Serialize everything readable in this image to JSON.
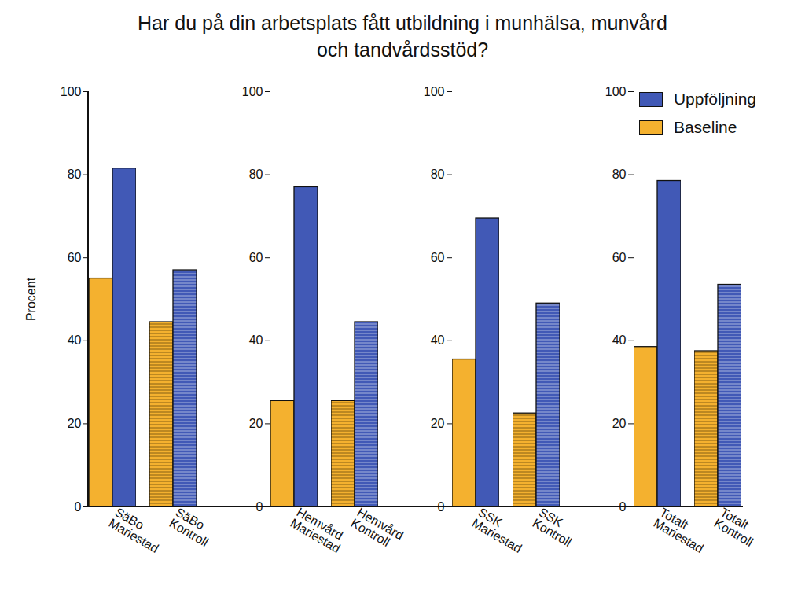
{
  "chart_data": {
    "type": "bar",
    "title": "Har du på din arbetsplats fått utbildning i munhälsa, munvård och tandvårdsstöd?",
    "ylabel": "Procent",
    "categories": [
      "SäBo Mariestad",
      "SäBo Kontroll",
      "Hemvård Mariestad",
      "Hemvård Kontroll",
      "SSK Mariestad",
      "SSK Kontroll",
      "Totalt Mariestad",
      "Totalt Kontroll"
    ],
    "series": [
      {
        "name": "Baseline",
        "color": "#f4b12f",
        "values": [
          55,
          44.5,
          25.5,
          25.5,
          35.5,
          22.5,
          38.5,
          37.5
        ]
      },
      {
        "name": "Uppföljning",
        "color": "#4159b6",
        "values": [
          81.5,
          57,
          77,
          44.5,
          69.5,
          49,
          78.5,
          53.5
        ]
      }
    ],
    "ylim": [
      0,
      100
    ],
    "yticks": [
      0,
      20,
      40,
      60,
      80,
      100
    ],
    "legend": "top-right",
    "grid": false
  }
}
